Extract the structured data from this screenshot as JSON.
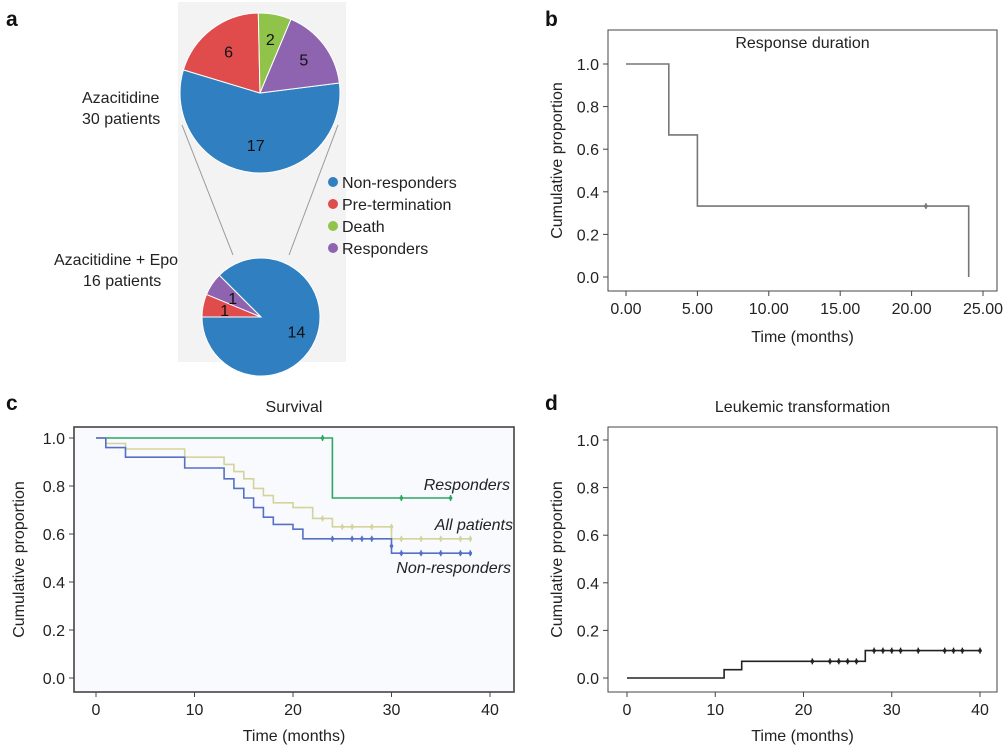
{
  "panels": {
    "a": {
      "letter": "a"
    },
    "b": {
      "letter": "b"
    },
    "c": {
      "letter": "c"
    },
    "d": {
      "letter": "d"
    }
  },
  "chart_data": [
    {
      "id": "a",
      "type": "pie",
      "legend": [
        {
          "label": "Non-responders",
          "color": "#2f7fc1"
        },
        {
          "label": "Pre-termination",
          "color": "#e04c4c"
        },
        {
          "label": "Death",
          "color": "#8fc34a"
        },
        {
          "label": "Responders",
          "color": "#8e63b0"
        }
      ],
      "pies": [
        {
          "caption": [
            "Azacitidine",
            "30 patients"
          ],
          "slices": [
            {
              "label": "Non-responders",
              "value": 17
            },
            {
              "label": "Pre-termination",
              "value": 6
            },
            {
              "label": "Death",
              "value": 2
            },
            {
              "label": "Responders",
              "value": 5
            }
          ]
        },
        {
          "caption": [
            "Azacitidine + Epo",
            "16 patients"
          ],
          "slices": [
            {
              "label": "Non-responders",
              "value": 14
            },
            {
              "label": "Pre-termination",
              "value": 1
            },
            {
              "label": "Responders",
              "value": 1
            }
          ]
        }
      ]
    },
    {
      "id": "b",
      "type": "line",
      "title": "Response duration",
      "xlabel": "Time (months)",
      "ylabel": "Cumulative proportion",
      "xlim": [
        0,
        25
      ],
      "ylim": [
        0,
        1
      ],
      "xticks": [
        "0.00",
        "5.00",
        "10.00",
        "15.00",
        "20.00",
        "25.00"
      ],
      "yticks": [
        "0.0",
        "0.2",
        "0.4",
        "0.6",
        "0.8",
        "1.0"
      ],
      "series": [
        {
          "color": "#777777",
          "steps": [
            [
              0,
              1.0
            ],
            [
              3,
              0.667
            ],
            [
              5,
              0.333
            ],
            [
              24,
              0.0
            ]
          ],
          "end_x": 24,
          "censored": [
            [
              21,
              0.333
            ]
          ]
        }
      ]
    },
    {
      "id": "c",
      "type": "line",
      "title": "Survival",
      "xlabel": "Time (months)",
      "ylabel": "Cumulative proportion",
      "xlim": [
        0,
        40
      ],
      "ylim": [
        0,
        1
      ],
      "xticks": [
        "0",
        "10",
        "20",
        "30",
        "40"
      ],
      "yticks": [
        "0.0",
        "0.2",
        "0.4",
        "0.6",
        "0.8",
        "1.0"
      ],
      "series": [
        {
          "name": "Responders",
          "color": "#2aa860",
          "steps": [
            [
              0,
              1.0
            ],
            [
              24,
              0.75
            ]
          ],
          "end_x": 36,
          "censored": [
            [
              23,
              1.0
            ],
            [
              31,
              0.75
            ],
            [
              36,
              0.75
            ]
          ]
        },
        {
          "name": "All patients",
          "color": "#d4d49a",
          "steps": [
            [
              0,
              1.0
            ],
            [
              1,
              0.977
            ],
            [
              3,
              0.954
            ],
            [
              9,
              0.92
            ],
            [
              13,
              0.89
            ],
            [
              14,
              0.86
            ],
            [
              15,
              0.83
            ],
            [
              16,
              0.79
            ],
            [
              17,
              0.76
            ],
            [
              18,
              0.73
            ],
            [
              20,
              0.71
            ],
            [
              22,
              0.665
            ],
            [
              24,
              0.63
            ],
            [
              30,
              0.58
            ]
          ],
          "end_x": 38,
          "censored": [
            [
              23,
              0.665
            ],
            [
              25,
              0.63
            ],
            [
              26,
              0.63
            ],
            [
              28,
              0.63
            ],
            [
              30,
              0.63
            ],
            [
              31,
              0.58
            ],
            [
              33,
              0.58
            ],
            [
              35,
              0.58
            ],
            [
              37,
              0.58
            ],
            [
              38,
              0.58
            ]
          ]
        },
        {
          "name": "Non-responders",
          "color": "#5670c8",
          "steps": [
            [
              0,
              1.0
            ],
            [
              1,
              0.96
            ],
            [
              3,
              0.92
            ],
            [
              9,
              0.875
            ],
            [
              13,
              0.83
            ],
            [
              14,
              0.79
            ],
            [
              15,
              0.75
            ],
            [
              16,
              0.71
            ],
            [
              17,
              0.67
            ],
            [
              18,
              0.64
            ],
            [
              20,
              0.62
            ],
            [
              21,
              0.58
            ],
            [
              30,
              0.52
            ]
          ],
          "end_x": 38,
          "censored": [
            [
              24,
              0.58
            ],
            [
              26,
              0.58
            ],
            [
              27,
              0.58
            ],
            [
              28,
              0.58
            ],
            [
              30,
              0.55
            ],
            [
              31,
              0.52
            ],
            [
              33,
              0.52
            ],
            [
              35,
              0.52
            ],
            [
              37,
              0.52
            ],
            [
              38,
              0.52
            ]
          ]
        }
      ],
      "series_labels": [
        "Responders",
        "All patients",
        "Non-responders"
      ]
    },
    {
      "id": "d",
      "type": "line",
      "title": "Leukemic transformation",
      "xlabel": "Time (months)",
      "ylabel": "Cumulative proportion",
      "xlim": [
        0,
        40
      ],
      "ylim": [
        0,
        1
      ],
      "xticks": [
        "0",
        "10",
        "20",
        "30",
        "40"
      ],
      "yticks": [
        "0.0",
        "0.2",
        "0.4",
        "0.6",
        "0.8",
        "1.0"
      ],
      "series": [
        {
          "color": "#222222",
          "steps": [
            [
              0,
              0.0
            ],
            [
              11,
              0.035
            ],
            [
              13,
              0.07
            ],
            [
              27,
              0.115
            ]
          ],
          "end_x": 40,
          "censored": [
            [
              21,
              0.07
            ],
            [
              23,
              0.07
            ],
            [
              24,
              0.07
            ],
            [
              25,
              0.07
            ],
            [
              26,
              0.07
            ],
            [
              28,
              0.115
            ],
            [
              29,
              0.115
            ],
            [
              30,
              0.115
            ],
            [
              31,
              0.115
            ],
            [
              33,
              0.115
            ],
            [
              36,
              0.115
            ],
            [
              37,
              0.115
            ],
            [
              38,
              0.115
            ],
            [
              40,
              0.115
            ]
          ]
        }
      ]
    }
  ]
}
